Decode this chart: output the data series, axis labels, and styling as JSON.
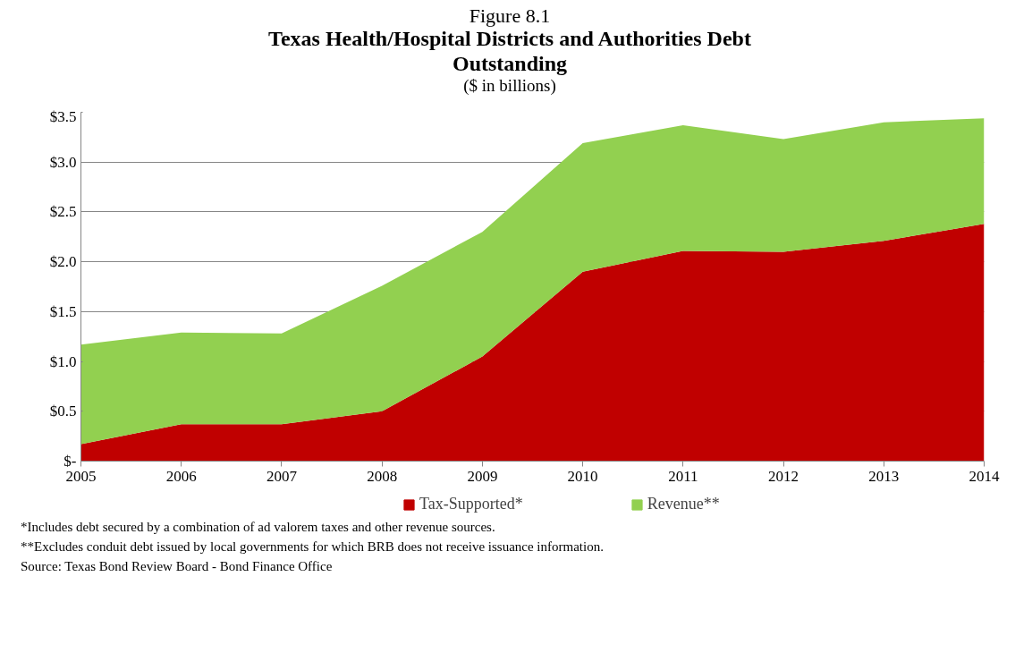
{
  "chart_data": {
    "type": "area",
    "stacked": true,
    "title": "Texas Health/Hospital Districts and Authorities Debt Outstanding",
    "subtitle": "($ in billions)",
    "x": [
      2005,
      2006,
      2007,
      2008,
      2009,
      2010,
      2011,
      2012,
      2013,
      2014
    ],
    "xlim": [
      2005,
      2014
    ],
    "xticks": [
      2005,
      2006,
      2007,
      2008,
      2009,
      2010,
      2011,
      2012,
      2013,
      2014
    ],
    "ylim": [
      0,
      3.5
    ],
    "yticks": [
      {
        "value": 0,
        "label": "$-"
      },
      {
        "value": 0.5,
        "label": "$0.5"
      },
      {
        "value": 1.0,
        "label": "$1.0"
      },
      {
        "value": 1.5,
        "label": "$1.5"
      },
      {
        "value": 2.0,
        "label": "$2.0"
      },
      {
        "value": 2.5,
        "label": "$2.5"
      },
      {
        "value": 3.0,
        "label": "$3.0"
      },
      {
        "value": 3.5,
        "label": "$3.5"
      }
    ],
    "grid": "y",
    "legend": "bottom",
    "series": [
      {
        "name": "Tax-Supported*",
        "color": "#c00000",
        "values": [
          0.17,
          0.37,
          0.37,
          0.5,
          1.05,
          1.9,
          2.11,
          2.1,
          2.21,
          2.38
        ]
      },
      {
        "name": "Revenue**",
        "color": "#92d050",
        "values": [
          1.0,
          0.92,
          0.91,
          1.26,
          1.25,
          1.29,
          1.26,
          1.13,
          1.19,
          1.06
        ]
      }
    ],
    "annotations": [
      "Figure 8.1",
      "*Includes debt secured by a combination of ad valorem taxes and other revenue sources.",
      "**Excludes conduit debt issued by local governments for which BRB does not receive issuance information.",
      "Source: Texas Bond Review Board - Bond Finance Office"
    ]
  }
}
